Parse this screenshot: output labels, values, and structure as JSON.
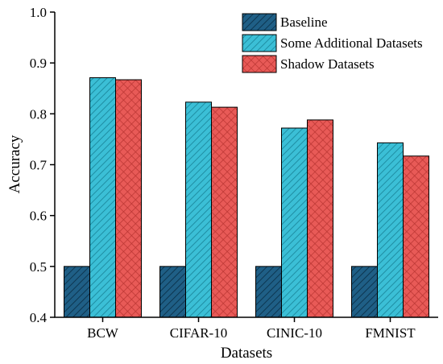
{
  "chart_data": {
    "type": "bar",
    "title": "",
    "xlabel": "Datasets",
    "ylabel": "Accuracy",
    "categories": [
      "BCW",
      "CIFAR-10",
      "CINIC-10",
      "FMNIST"
    ],
    "ylim": [
      0.4,
      1.0
    ],
    "yticks": [
      "0.4",
      "0.5",
      "0.6",
      "0.7",
      "0.8",
      "0.9",
      "1.0"
    ],
    "grid": false,
    "legend_position": "top-right",
    "series": [
      {
        "name": "Baseline",
        "values": [
          0.5,
          0.5,
          0.5,
          0.5
        ],
        "color": "#1f5f86",
        "hatch": "diagonal-lines"
      },
      {
        "name": "Some Additional Datasets",
        "values": [
          0.871,
          0.823,
          0.772,
          0.743
        ],
        "color": "#3bbfd6",
        "hatch": "diagonal-lines"
      },
      {
        "name": "Shadow Datasets",
        "values": [
          0.867,
          0.813,
          0.788,
          0.717
        ],
        "color": "#e85a57",
        "hatch": "crosshatch"
      }
    ]
  }
}
